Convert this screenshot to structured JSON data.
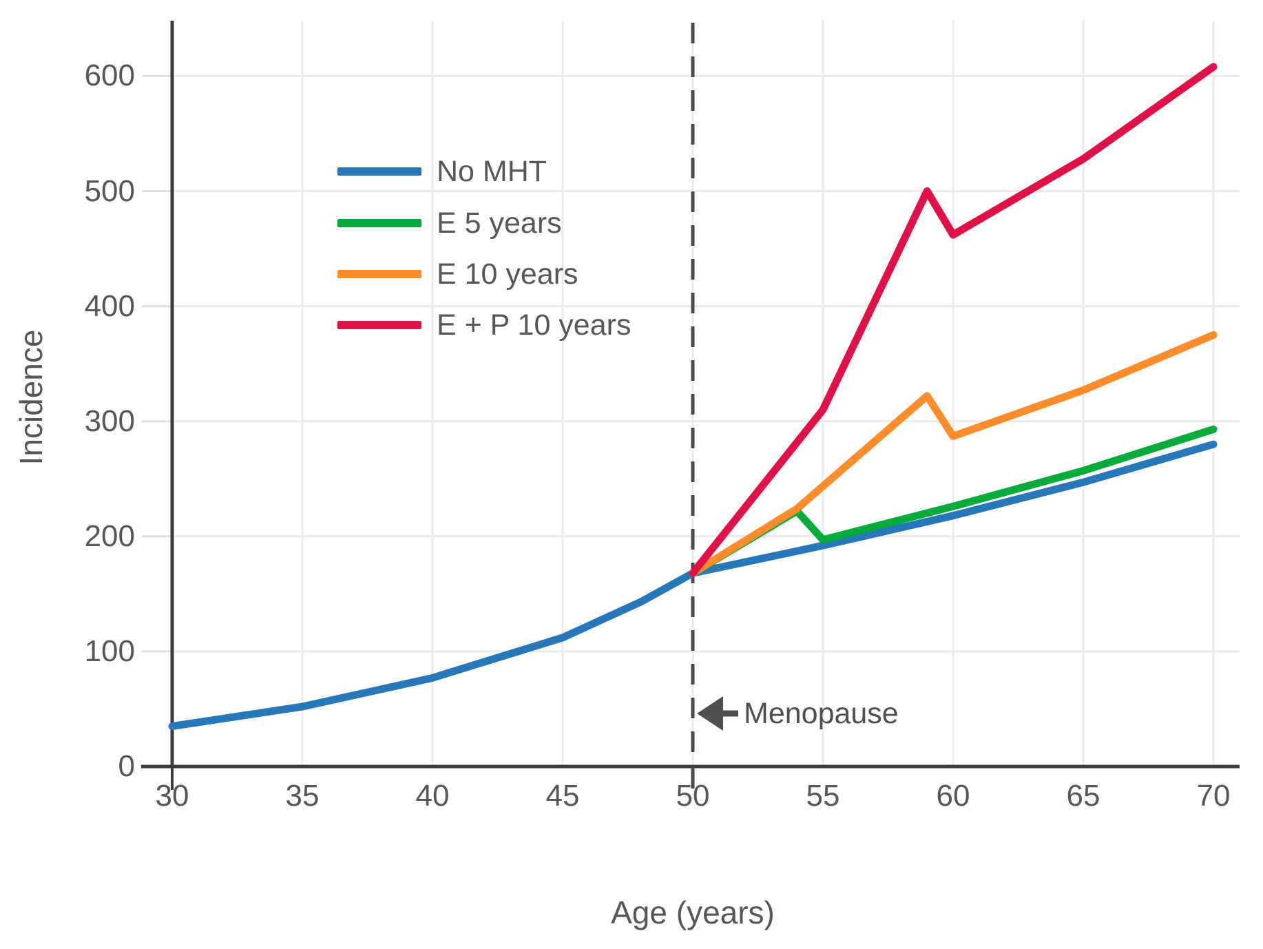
{
  "figure": {
    "background": "#ffffff",
    "text_color": "#575757",
    "axis_color": "#3d3d3d",
    "grid_color": "#ececec",
    "annotation_color": "#4f4f4f"
  },
  "chart_data": {
    "type": "line",
    "title": "",
    "xlabel": "Age (years)",
    "ylabel": "Incidence",
    "x_ticks": [
      30,
      35,
      40,
      45,
      50,
      55,
      60,
      65,
      70
    ],
    "y_ticks": [
      0,
      100,
      200,
      300,
      400,
      500,
      600
    ],
    "xlim": [
      30,
      70
    ],
    "ylim": [
      0,
      648
    ],
    "grid": true,
    "legend_position": "upper-left-inside",
    "vline": {
      "x": 50,
      "style": "dashed",
      "color": "#4a4a4a"
    },
    "annotation": {
      "text": "Menopause",
      "arrow": "left",
      "points_to_x": 50
    },
    "series": [
      {
        "name": "No MHT",
        "color": "#2878b9",
        "points": [
          [
            30,
            35
          ],
          [
            35,
            52
          ],
          [
            40,
            77
          ],
          [
            45,
            112
          ],
          [
            48,
            143
          ],
          [
            50,
            168
          ],
          [
            55,
            192
          ],
          [
            60,
            218
          ],
          [
            65,
            247
          ],
          [
            70,
            280
          ]
        ]
      },
      {
        "name": "E 5 years",
        "color": "#06ab3c",
        "points": [
          [
            50,
            168
          ],
          [
            54,
            222
          ],
          [
            55,
            197
          ],
          [
            60,
            226
          ],
          [
            65,
            257
          ],
          [
            70,
            293
          ]
        ]
      },
      {
        "name": "E 10 years",
        "color": "#fc8c2c",
        "points": [
          [
            50,
            168
          ],
          [
            54,
            224
          ],
          [
            59,
            322
          ],
          [
            60,
            287
          ],
          [
            65,
            327
          ],
          [
            70,
            375
          ]
        ]
      },
      {
        "name": "E + P 10 years",
        "color": "#e01147",
        "points": [
          [
            50,
            168
          ],
          [
            55,
            310
          ],
          [
            59,
            500
          ],
          [
            60,
            462
          ],
          [
            65,
            528
          ],
          [
            70,
            608
          ]
        ]
      }
    ]
  }
}
